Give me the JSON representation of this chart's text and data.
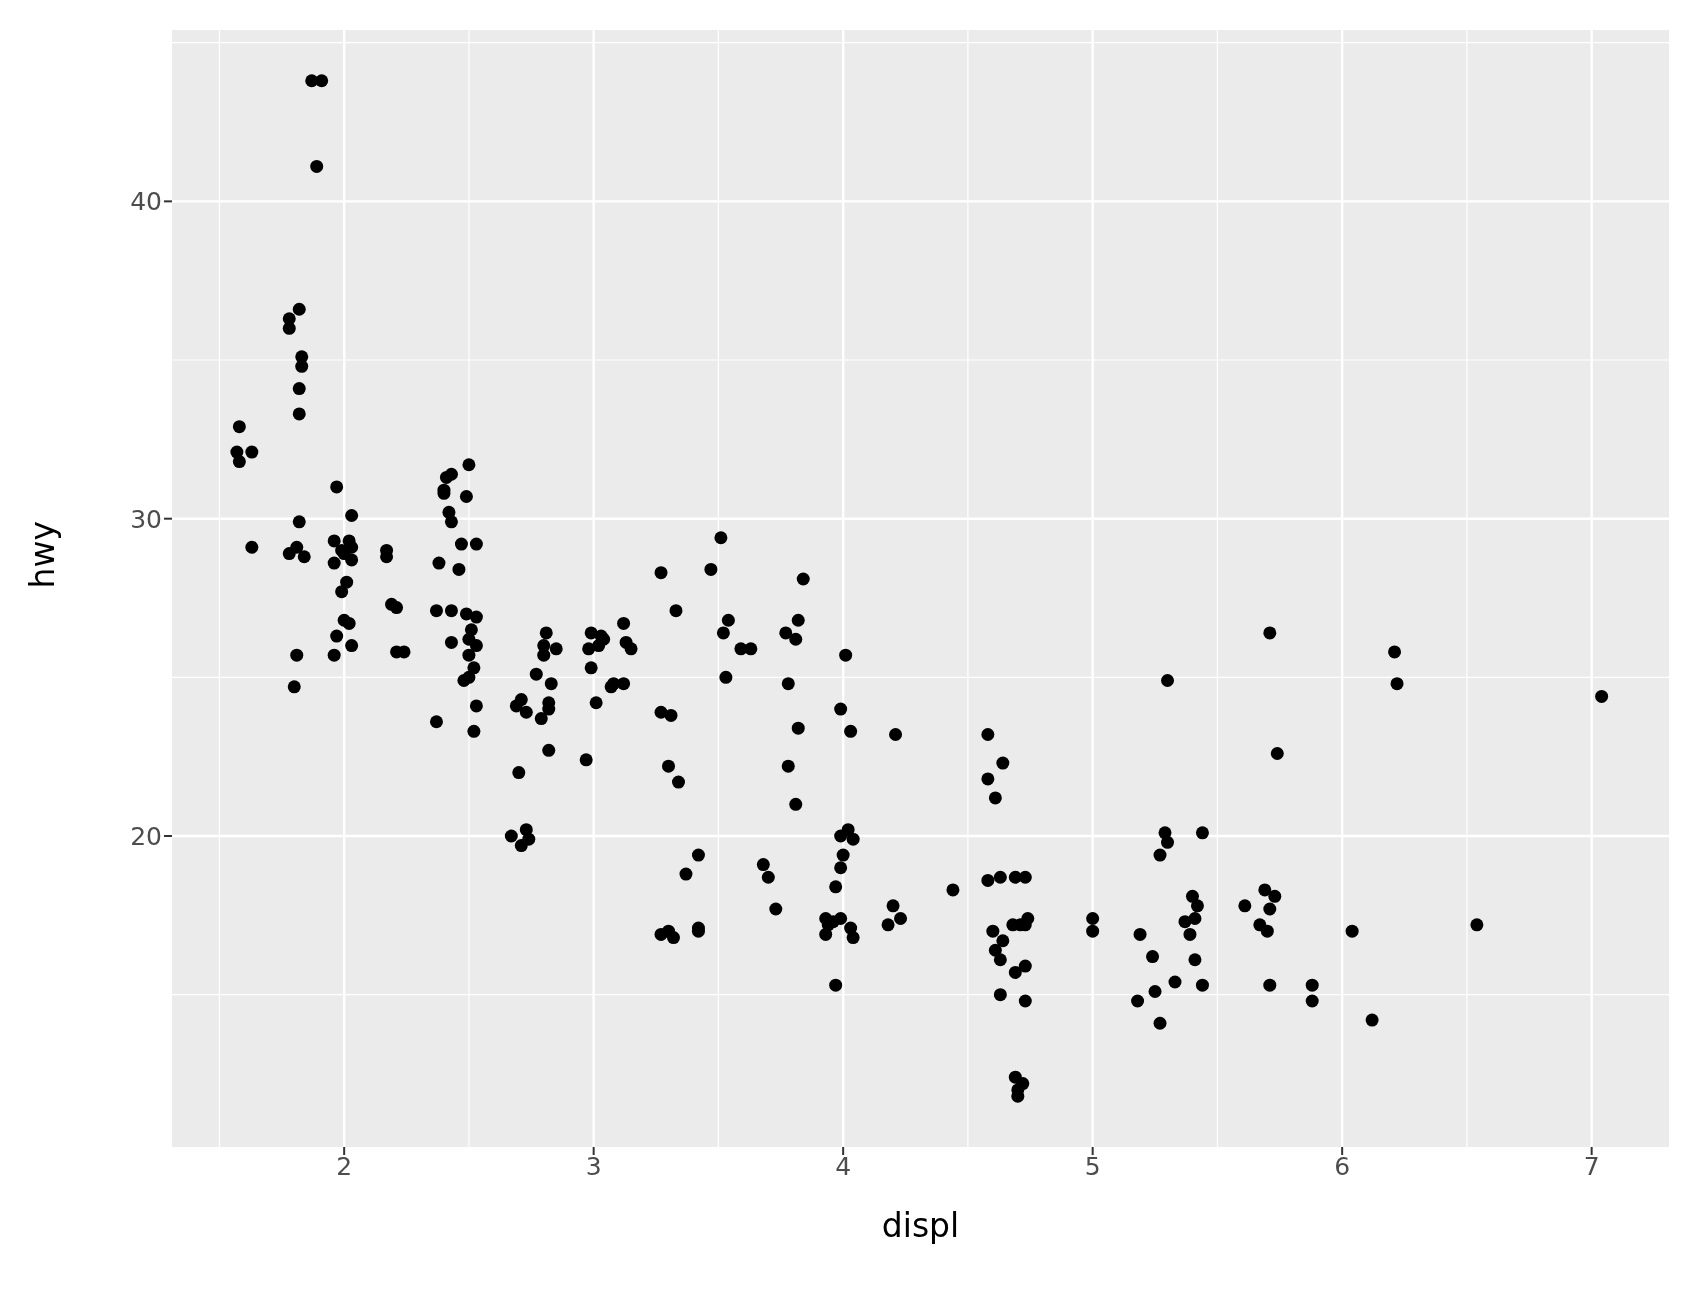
{
  "chart_data": {
    "type": "scatter",
    "xlabel": "displ",
    "ylabel": "hwy",
    "xlim": [
      1.31,
      7.31
    ],
    "ylim": [
      10.2,
      45.4
    ],
    "xticks": [
      2,
      3,
      4,
      5,
      6,
      7
    ],
    "yticks": [
      20,
      30,
      40
    ],
    "grid": true,
    "legend": false,
    "marker": "circle",
    "series": [
      {
        "color": "#000000",
        "x": [
          1.87,
          1.91,
          1.89,
          1.78,
          1.78,
          1.82,
          1.83,
          1.83,
          1.82,
          1.82,
          1.58,
          1.57,
          1.58,
          1.63,
          1.63,
          1.78,
          1.81,
          1.84,
          1.82,
          1.81,
          1.8,
          1.97,
          1.96,
          1.96,
          1.99,
          2.02,
          2.03,
          2.0,
          2.03,
          1.99,
          2.01,
          2.0,
          2.02,
          1.97,
          2.03,
          1.96,
          2.03,
          2.17,
          2.17,
          2.19,
          2.21,
          2.21,
          2.24,
          2.37,
          2.38,
          2.37,
          2.4,
          2.41,
          2.43,
          2.4,
          2.42,
          2.43,
          2.5,
          2.49,
          2.47,
          2.53,
          2.46,
          2.43,
          2.49,
          2.53,
          2.51,
          2.43,
          2.5,
          2.53,
          2.5,
          2.52,
          2.48,
          2.5,
          2.53,
          2.52,
          2.69,
          2.71,
          2.73,
          2.7,
          2.67,
          2.73,
          2.71,
          2.74,
          2.77,
          2.81,
          2.8,
          2.85,
          2.8,
          2.83,
          2.82,
          2.82,
          2.79,
          2.82,
          2.98,
          2.99,
          3.03,
          3.02,
          3.04,
          2.99,
          3.01,
          2.97,
          3.07,
          3.08,
          3.12,
          3.12,
          3.13,
          3.15,
          3.27,
          3.27,
          3.31,
          3.3,
          3.34,
          3.33,
          3.37,
          3.42,
          3.27,
          3.3,
          3.32,
          3.42,
          3.42,
          3.47,
          3.51,
          3.52,
          3.54,
          3.59,
          3.63,
          3.53,
          3.68,
          3.7,
          3.73,
          3.77,
          3.81,
          3.82,
          3.84,
          3.78,
          3.82,
          3.78,
          3.81,
          3.99,
          4.01,
          4.03,
          3.99,
          4.02,
          4.04,
          4.0,
          3.99,
          3.97,
          3.93,
          3.96,
          3.99,
          3.94,
          3.93,
          4.03,
          4.04,
          3.97,
          4.21,
          4.2,
          4.18,
          4.23,
          4.44,
          4.58,
          4.64,
          4.58,
          4.61,
          4.58,
          4.63,
          4.69,
          4.73,
          4.6,
          4.61,
          4.63,
          4.64,
          4.68,
          4.71,
          4.74,
          4.73,
          4.73,
          4.69,
          4.63,
          4.73,
          4.69,
          4.72,
          4.7,
          4.7,
          5.0,
          5.0,
          5.19,
          5.18,
          5.24,
          5.25,
          5.27,
          5.33,
          5.3,
          5.29,
          5.3,
          5.27,
          5.44,
          5.4,
          5.42,
          5.37,
          5.41,
          5.39,
          5.41,
          5.44,
          5.61,
          5.67,
          5.69,
          5.73,
          5.71,
          5.7,
          5.71,
          5.71,
          5.74,
          5.88,
          5.88,
          6.04,
          6.12,
          6.21,
          6.22,
          6.54,
          7.04
        ],
        "values": [
          43.8,
          43.8,
          41.1,
          36.3,
          36.0,
          36.6,
          35.1,
          34.8,
          34.1,
          33.3,
          32.9,
          32.1,
          31.8,
          32.1,
          29.1,
          28.9,
          29.1,
          28.8,
          29.9,
          25.7,
          24.7,
          31.0,
          29.3,
          28.6,
          29.0,
          29.3,
          29.1,
          28.9,
          28.7,
          27.7,
          28.0,
          26.8,
          26.7,
          26.3,
          26.0,
          25.7,
          30.1,
          29.0,
          28.8,
          27.3,
          27.2,
          25.8,
          25.8,
          27.1,
          28.6,
          23.6,
          30.9,
          31.3,
          31.4,
          30.8,
          30.2,
          29.9,
          31.7,
          30.7,
          29.2,
          29.2,
          28.4,
          27.1,
          27.0,
          26.9,
          26.5,
          26.1,
          26.2,
          26.0,
          25.7,
          25.3,
          24.9,
          25.0,
          24.1,
          23.3,
          24.1,
          24.3,
          23.9,
          22.0,
          20.0,
          20.2,
          19.7,
          19.9,
          25.1,
          26.4,
          26.0,
          25.9,
          25.7,
          24.8,
          24.2,
          24.0,
          23.7,
          22.7,
          25.9,
          26.4,
          26.3,
          26.0,
          26.2,
          25.3,
          24.2,
          22.4,
          24.7,
          24.8,
          24.8,
          26.7,
          26.1,
          25.9,
          28.3,
          23.9,
          23.8,
          22.2,
          21.7,
          27.1,
          18.8,
          19.4,
          16.9,
          17.0,
          16.8,
          17.1,
          17.0,
          28.4,
          29.4,
          26.4,
          26.8,
          25.9,
          25.9,
          25.0,
          19.1,
          18.7,
          17.7,
          26.4,
          26.2,
          26.8,
          28.1,
          24.8,
          23.4,
          22.2,
          21.0,
          24.0,
          25.7,
          23.3,
          20.0,
          20.2,
          19.9,
          19.4,
          19.0,
          18.4,
          17.4,
          17.3,
          17.4,
          17.2,
          16.9,
          17.1,
          16.8,
          15.3,
          23.2,
          17.8,
          17.2,
          17.4,
          18.3,
          23.2,
          22.3,
          21.8,
          21.2,
          18.6,
          18.7,
          18.7,
          18.7,
          17.0,
          16.4,
          16.1,
          16.7,
          17.2,
          17.2,
          17.4,
          17.2,
          15.9,
          15.7,
          15.0,
          14.8,
          12.4,
          12.2,
          12.0,
          11.8,
          17.4,
          17.0,
          16.9,
          14.8,
          16.2,
          15.1,
          14.1,
          15.4,
          24.9,
          20.1,
          19.8,
          19.4,
          20.1,
          18.1,
          17.8,
          17.3,
          17.4,
          16.9,
          16.1,
          15.3,
          17.8,
          17.2,
          18.3,
          18.1,
          17.7,
          17.0,
          15.3,
          26.4,
          22.6,
          15.3,
          14.8,
          17.0,
          14.2,
          25.8,
          24.8,
          17.2,
          24.4
        ]
      }
    ]
  }
}
